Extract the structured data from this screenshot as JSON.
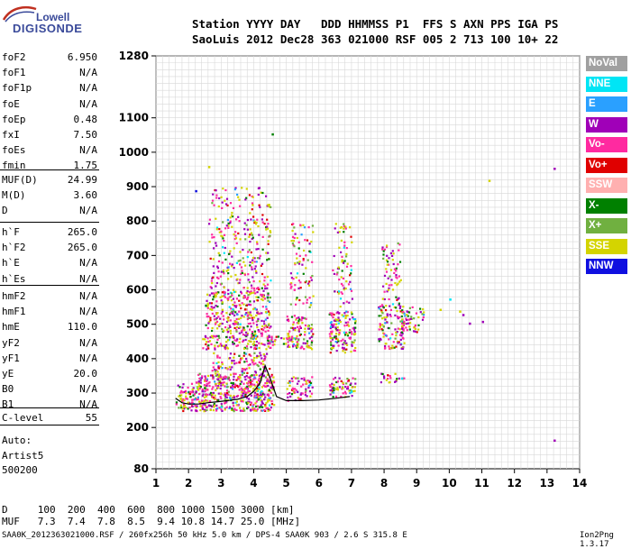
{
  "logo": {
    "line1": "Lowell",
    "line2": "DIGISONDE"
  },
  "header": {
    "line1": "Station YYYY DAY   DDD HHMMSS P1  FFS S AXN PPS IGA PS",
    "line2": "SaoLuis 2012 Dec28 363 021000 RSF 005 2 713 100 10+ 22"
  },
  "params": {
    "group1": [
      {
        "label": "foF2",
        "value": "6.950"
      },
      {
        "label": "foF1",
        "value": "N/A"
      },
      {
        "label": "foF1p",
        "value": "N/A"
      },
      {
        "label": "foE",
        "value": "N/A"
      },
      {
        "label": "foEp",
        "value": "0.48"
      },
      {
        "label": "fxI",
        "value": "7.50"
      },
      {
        "label": "foEs",
        "value": "N/A"
      },
      {
        "label": "fmin",
        "value": "1.75"
      }
    ],
    "group2": [
      {
        "label": "MUF(D)",
        "value": "24.99"
      },
      {
        "label": "M(D)",
        "value": "3.60"
      },
      {
        "label": "D",
        "value": "N/A"
      }
    ],
    "group3": [
      {
        "label": "h`F",
        "value": "265.0"
      },
      {
        "label": "h`F2",
        "value": "265.0"
      },
      {
        "label": "h`E",
        "value": "N/A"
      },
      {
        "label": "h`Es",
        "value": "N/A"
      }
    ],
    "group4": [
      {
        "label": "hmF2",
        "value": "N/A"
      },
      {
        "label": "hmF1",
        "value": "N/A"
      },
      {
        "label": "hmE",
        "value": "110.0"
      },
      {
        "label": "yF2",
        "value": "N/A"
      },
      {
        "label": "yF1",
        "value": "N/A"
      },
      {
        "label": "yE",
        "value": "20.0"
      },
      {
        "label": "B0",
        "value": "N/A"
      },
      {
        "label": "B1",
        "value": "N/A"
      }
    ],
    "clevel": {
      "label": "C-level",
      "value": "55"
    }
  },
  "notes": {
    "auto": "Auto:",
    "artist": "Artist5",
    "code": "500200"
  },
  "legend": [
    {
      "label": "NoVal",
      "color": "#a0a0a0"
    },
    {
      "label": "NNE",
      "color": "#00e5f5"
    },
    {
      "label": "E",
      "color": "#2aa0ff"
    },
    {
      "label": "W",
      "color": "#a000b8"
    },
    {
      "label": "Vo-",
      "color": "#ff2aa0"
    },
    {
      "label": "Vo+",
      "color": "#e00000"
    },
    {
      "label": "SSW",
      "color": "#ffb0b0"
    },
    {
      "label": "X-",
      "color": "#008000"
    },
    {
      "label": "X+",
      "color": "#70b040"
    },
    {
      "label": "SSE",
      "color": "#d4d400"
    },
    {
      "label": "NNW",
      "color": "#1010e0"
    }
  ],
  "table": {
    "row1": "D     100  200  400  600  800 1000 1500 3000 [km]",
    "row2": "MUF   7.3  7.4  7.8  8.5  9.4 10.8 14.7 25.0 [MHz]"
  },
  "footer": "SAA0K_2012363021000.RSF / 260fx256h 50 kHz 5.0 km / DPS-4 SAA0K 903 / 2.6 S 315.8 E",
  "version": "Ion2Png 1.3.17",
  "chart_data": {
    "type": "scatter",
    "title": "",
    "xlabel": "",
    "ylabel": "",
    "xlim": [
      1,
      14
    ],
    "ylim": [
      80,
      1280
    ],
    "x_ticks": [
      1,
      2,
      3,
      4,
      5,
      6,
      7,
      8,
      9,
      10,
      11,
      12,
      13,
      14
    ],
    "y_ticks": [
      80,
      200,
      300,
      400,
      500,
      600,
      700,
      800,
      900,
      1000,
      1100,
      1280
    ],
    "grid": true,
    "trace": {
      "name": "",
      "x": [
        1.6,
        1.8,
        2.0,
        2.3,
        2.6,
        2.9,
        3.2,
        3.5,
        3.8,
        4.0,
        4.2,
        4.35,
        4.5,
        4.7,
        5.0,
        5.5,
        6.0,
        6.5,
        6.95
      ],
      "y": [
        285,
        272,
        268,
        268,
        272,
        275,
        278,
        282,
        290,
        305,
        330,
        380,
        345,
        290,
        278,
        278,
        280,
        285,
        290
      ]
    },
    "clusters": [
      {
        "x": [
          1.6,
          2.2
        ],
        "y": [
          250,
          330
        ],
        "density": 0.8
      },
      {
        "x": [
          2.2,
          4.6
        ],
        "y": [
          250,
          360
        ],
        "density": 1.0
      },
      {
        "x": [
          2.7,
          4.5
        ],
        "y": [
          360,
          420
        ],
        "density": 0.5
      },
      {
        "x": [
          2.4,
          4.5
        ],
        "y": [
          430,
          470
        ],
        "density": 0.7
      },
      {
        "x": [
          2.5,
          4.5
        ],
        "y": [
          470,
          600
        ],
        "density": 0.6
      },
      {
        "x": [
          2.6,
          4.5
        ],
        "y": [
          600,
          900
        ],
        "density": 0.25
      },
      {
        "x": [
          4.4,
          5.3
        ],
        "y": [
          440,
          470
        ],
        "density": 0.7
      },
      {
        "x": [
          5.0,
          5.8
        ],
        "y": [
          280,
          350
        ],
        "density": 0.6
      },
      {
        "x": [
          5.0,
          5.8
        ],
        "y": [
          430,
          530
        ],
        "density": 0.6
      },
      {
        "x": [
          5.1,
          5.8
        ],
        "y": [
          550,
          800
        ],
        "density": 0.25
      },
      {
        "x": [
          6.3,
          7.1
        ],
        "y": [
          290,
          350
        ],
        "density": 0.7
      },
      {
        "x": [
          6.3,
          7.1
        ],
        "y": [
          420,
          540
        ],
        "density": 0.8
      },
      {
        "x": [
          6.4,
          7.0
        ],
        "y": [
          550,
          800
        ],
        "density": 0.25
      },
      {
        "x": [
          7.8,
          8.6
        ],
        "y": [
          430,
          560
        ],
        "density": 0.6
      },
      {
        "x": [
          7.8,
          8.6
        ],
        "y": [
          330,
          360
        ],
        "density": 0.5
      },
      {
        "x": [
          7.9,
          8.5
        ],
        "y": [
          560,
          740
        ],
        "density": 0.3
      },
      {
        "x": [
          8.5,
          9.2
        ],
        "y": [
          480,
          560
        ],
        "density": 0.5
      }
    ],
    "isolated_points": [
      {
        "x": 4.55,
        "y": 1055,
        "color": "#008000"
      },
      {
        "x": 2.6,
        "y": 960,
        "color": "#d4d400"
      },
      {
        "x": 2.2,
        "y": 890,
        "color": "#1010e0"
      },
      {
        "x": 11.2,
        "y": 920,
        "color": "#d4d400"
      },
      {
        "x": 13.2,
        "y": 955,
        "color": "#a000b8"
      },
      {
        "x": 13.2,
        "y": 165,
        "color": "#a000b8"
      },
      {
        "x": 10.0,
        "y": 575,
        "color": "#00e5f5"
      },
      {
        "x": 10.3,
        "y": 540,
        "color": "#d4d400"
      },
      {
        "x": 10.4,
        "y": 530,
        "color": "#a000b8"
      },
      {
        "x": 10.6,
        "y": 505,
        "color": "#a000b8"
      },
      {
        "x": 11.0,
        "y": 510,
        "color": "#a000b8"
      },
      {
        "x": 9.7,
        "y": 545,
        "color": "#d4d400"
      }
    ]
  }
}
